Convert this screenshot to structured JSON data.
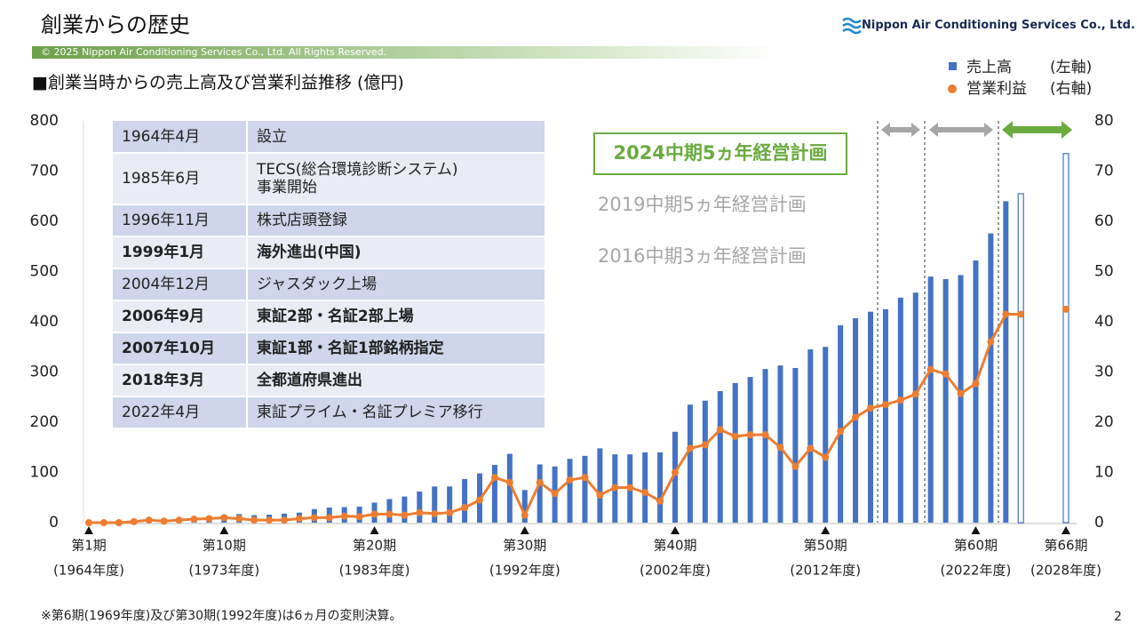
{
  "header": {
    "title": "創業からの歴史",
    "copyright": "© 2025 Nippon Air Conditioning Services Co., Ltd. All Rights Reserved.",
    "company": "Nippon Air Conditioning Services Co., Ltd."
  },
  "chart_data": {
    "type": "bar_line",
    "subtitle": "■創業当時からの売上高及び営業利益推移 (億円)",
    "x": [
      1,
      2,
      3,
      4,
      5,
      6,
      7,
      8,
      9,
      10,
      11,
      12,
      13,
      14,
      15,
      16,
      17,
      18,
      19,
      20,
      21,
      22,
      23,
      24,
      25,
      26,
      27,
      28,
      29,
      30,
      31,
      32,
      33,
      34,
      35,
      36,
      37,
      38,
      39,
      40,
      41,
      42,
      43,
      44,
      45,
      46,
      47,
      48,
      49,
      50,
      51,
      52,
      53,
      54,
      55,
      56,
      57,
      58,
      59,
      60,
      61,
      62,
      63,
      64,
      65,
      66
    ],
    "xlim": [
      1,
      66
    ],
    "xticks": [
      {
        "value": 1,
        "label": [
          "第1期",
          "(1964年度)"
        ]
      },
      {
        "value": 10,
        "label": [
          "第10期",
          "(1973年度)"
        ]
      },
      {
        "value": 20,
        "label": [
          "第20期",
          "(1983年度)"
        ]
      },
      {
        "value": 30,
        "label": [
          "第30期",
          "(1992年度)"
        ]
      },
      {
        "value": 40,
        "label": [
          "第40期",
          "(2002年度)"
        ]
      },
      {
        "value": 50,
        "label": [
          "第50期",
          "(2012年度)"
        ]
      },
      {
        "value": 60,
        "label": [
          "第60期",
          "(2022年度)"
        ]
      },
      {
        "value": 66,
        "label": [
          "第66期",
          "(2028年度)"
        ]
      }
    ],
    "ylim": [
      0,
      800
    ],
    "yticks": [
      0,
      100,
      200,
      300,
      400,
      500,
      600,
      700,
      800
    ],
    "y2lim": [
      0,
      80
    ],
    "y2ticks": [
      0,
      10,
      20,
      30,
      40,
      50,
      60,
      70,
      80
    ],
    "hollow_x": [
      63,
      66
    ],
    "series": [
      {
        "name": "売上高",
        "axis_label": "(左軸)",
        "color": "#4472c4",
        "axis": "y",
        "values": [
          1,
          1,
          2,
          2,
          3,
          3,
          5,
          7,
          10,
          15,
          17,
          15,
          16,
          18,
          20,
          27,
          30,
          31,
          32,
          40,
          47,
          52,
          62,
          72,
          72,
          87,
          98,
          115,
          137,
          65,
          116,
          112,
          127,
          133,
          148,
          136,
          136,
          140,
          140,
          181,
          235,
          243,
          262,
          278,
          290,
          306,
          313,
          308,
          345,
          350,
          393,
          407,
          420,
          425,
          448,
          458,
          490,
          485,
          493,
          522,
          576,
          640,
          655,
          null,
          null,
          735
        ]
      },
      {
        "name": "営業利益",
        "axis_label": "(右軸)",
        "color": "#ed7d31",
        "axis": "y2",
        "values": [
          0,
          0,
          0,
          0.2,
          0.5,
          0.3,
          0.5,
          0.7,
          0.8,
          1,
          0.8,
          0.5,
          0.5,
          0.5,
          0.8,
          1,
          1,
          1.3,
          1.2,
          1.7,
          1.7,
          1.5,
          2,
          1.8,
          2,
          3,
          4.5,
          9,
          8,
          1.5,
          8,
          5.8,
          8.5,
          9,
          5.5,
          7,
          7,
          6,
          4.3,
          10,
          14.8,
          15.5,
          18.5,
          17.2,
          17.5,
          17.5,
          15,
          11.2,
          14.8,
          13,
          18.2,
          21,
          22.8,
          23.5,
          24.4,
          25.6,
          30.5,
          29.6,
          25.7,
          27.7,
          36,
          41.5,
          41.5,
          null,
          null,
          42.5
        ]
      }
    ],
    "plans": [
      "2024中期5ヵ年経営計画",
      "2019中期5ヵ年経営計画",
      "2016中期3ヵ年経営計画"
    ],
    "footnote": "※第6期(1969年度)及び第30期(1992年度)は6ヵ月の変則決算。"
  },
  "history": [
    {
      "date": "1964年4月",
      "event": "設立",
      "bold": false
    },
    {
      "date": "1985年6月",
      "event": "TECS(総合環境診断システム)\n事業開始",
      "bold": false
    },
    {
      "date": "1996年11月",
      "event": "株式店頭登録",
      "bold": false
    },
    {
      "date": "1999年1月",
      "event": "海外進出(中国)",
      "bold": true
    },
    {
      "date": "2004年12月",
      "event": "ジャスダック上場",
      "bold": false
    },
    {
      "date": "2006年9月",
      "event": "東証2部・名証2部上場",
      "bold": true
    },
    {
      "date": "2007年10月",
      "event": "東証1部・名証1部銘柄指定",
      "bold": true
    },
    {
      "date": "2018年3月",
      "event": "全都道府県進出",
      "bold": true
    },
    {
      "date": "2022年4月",
      "event": "東証プライム・名証プレミア移行",
      "bold": false
    }
  ],
  "page_number": "2"
}
